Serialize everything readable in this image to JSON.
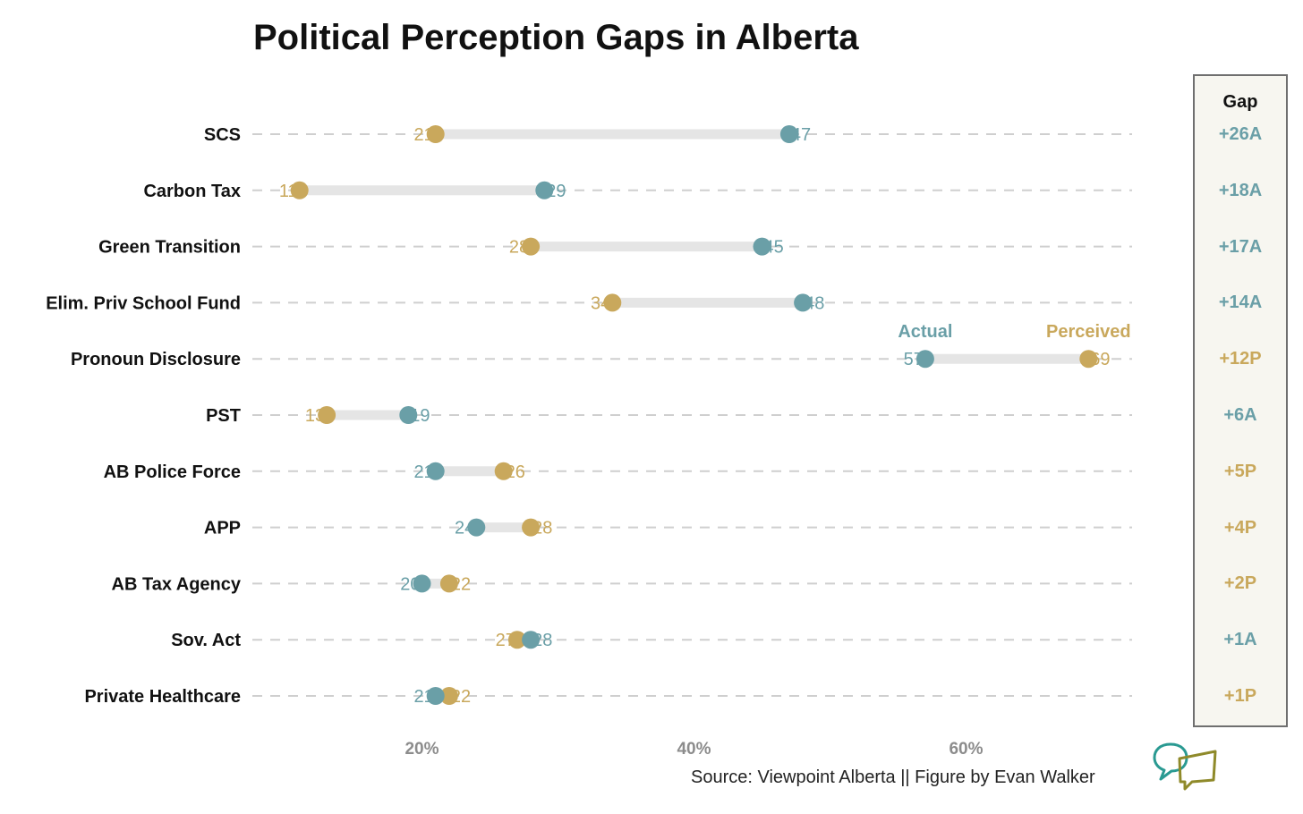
{
  "title": "Political Perception Gaps in Alberta",
  "source": "Source: Viewpoint Alberta || Figure by Evan Walker",
  "colors": {
    "actual": "#6a9fa7",
    "perceived": "#c9a85c",
    "bar": "#e5e5e5",
    "grid": "#cfcfcf",
    "axis_text": "#8c8c8c"
  },
  "gap_header": "Gap",
  "legend": {
    "actual": "Actual",
    "perceived": "Perceived"
  },
  "chart_data": {
    "type": "dumbbell",
    "xlim": [
      0,
      72
    ],
    "x_ticks": [
      20,
      40,
      60
    ],
    "x_tick_labels": [
      "20%",
      "40%",
      "60%"
    ],
    "grid": "horizontal dashed",
    "series": [
      {
        "name": "Actual"
      },
      {
        "name": "Perceived"
      }
    ],
    "rows": [
      {
        "label": "SCS",
        "actual": 47,
        "perceived": 21,
        "gap": "+26A"
      },
      {
        "label": "Carbon Tax",
        "actual": 29,
        "perceived": 11,
        "gap": "+18A"
      },
      {
        "label": "Green Transition",
        "actual": 45,
        "perceived": 28,
        "gap": "+17A"
      },
      {
        "label": "Elim. Priv School Fund",
        "actual": 48,
        "perceived": 34,
        "gap": "+14A"
      },
      {
        "label": "Pronoun Disclosure",
        "actual": 57,
        "perceived": 69,
        "gap": "+12P"
      },
      {
        "label": "PST",
        "actual": 19,
        "perceived": 13,
        "gap": "+6A"
      },
      {
        "label": "AB Police Force",
        "actual": 21,
        "perceived": 26,
        "gap": "+5P"
      },
      {
        "label": "APP",
        "actual": 24,
        "perceived": 28,
        "gap": "+4P"
      },
      {
        "label": "AB Tax Agency",
        "actual": 20,
        "perceived": 22,
        "gap": "+2P"
      },
      {
        "label": "Sov. Act",
        "actual": 28,
        "perceived": 27,
        "gap": "+1A"
      },
      {
        "label": "Private Healthcare",
        "actual": 21,
        "perceived": 22,
        "gap": "+1P"
      }
    ]
  }
}
